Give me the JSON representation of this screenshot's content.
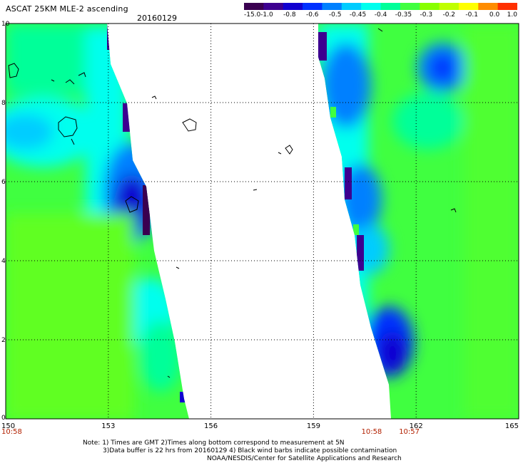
{
  "header": {
    "title": "ASCAT 25KM MLE-2 ascending",
    "date": "20160129"
  },
  "colorbar": {
    "labels": [
      "-15.0",
      "-1.0",
      "-0.8",
      "-0.6",
      "-0.5",
      "-0.45",
      "-0.4",
      "-0.35",
      "-0.3",
      "-0.2",
      "-0.1",
      "0.0",
      "1.0"
    ],
    "colors": [
      "#3a0050",
      "#3d0090",
      "#1100d0",
      "#0030ff",
      "#0080ff",
      "#00ccff",
      "#00ffee",
      "#00ff99",
      "#40ff40",
      "#88ff00",
      "#c0ff00",
      "#ffff00",
      "#ff8c00",
      "#ff3000"
    ]
  },
  "map": {
    "x_ticks": [
      "150",
      "153",
      "156",
      "159",
      "162",
      "165"
    ],
    "y_ticks": [
      "0",
      "2",
      "4",
      "6",
      "8",
      "10"
    ],
    "x_range": [
      150,
      165
    ],
    "y_range": [
      0,
      10
    ],
    "pass_times": [
      {
        "label": "10:58",
        "lon": 150
      },
      {
        "label": "10:58",
        "lon": 160.7
      },
      {
        "label": "10:57",
        "lon": 161.8
      }
    ]
  },
  "notes": {
    "line1": "Note: 1) Times are GMT 2)Times along bottom correspond to measurement at 5N",
    "line2": "3)Data buffer is 22 hrs from 20160129 4) Black wind barbs indicate possible contamination",
    "line3": "NOAA/NESDIS/Center for Satellite Applications and Research"
  }
}
